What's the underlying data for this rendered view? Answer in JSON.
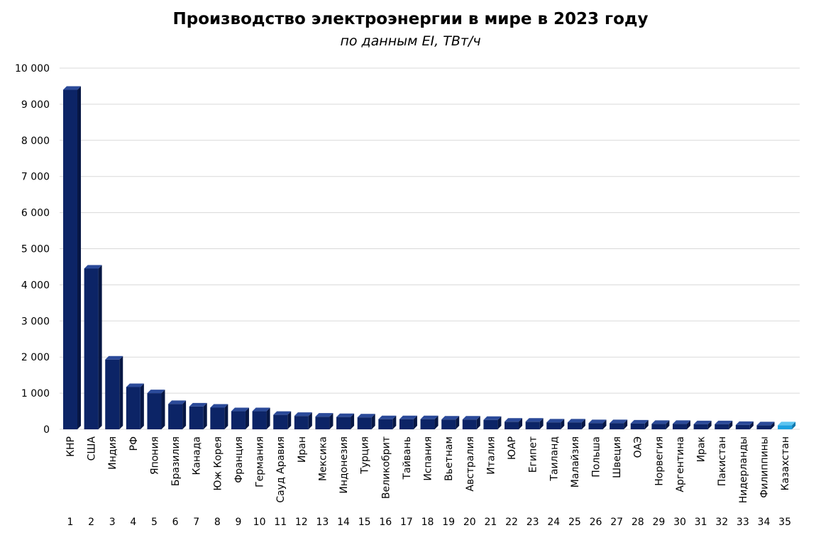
{
  "chart_data": {
    "type": "bar",
    "title": "Производство электроэнергии в мире в 2023 году",
    "subtitle": "по данным EI, ТВт/ч",
    "ylim": [
      0,
      10000
    ],
    "yticks": [
      "0",
      "1 000",
      "2 000",
      "3 000",
      "4 000",
      "5 000",
      "6 000",
      "7 000",
      "8 000",
      "9 000",
      "10 000"
    ],
    "grid": true,
    "colors": {
      "bar": "#0c2466",
      "highlight": "#1da1e0"
    },
    "categories": [
      "КНР",
      "США",
      "Индия",
      "РФ",
      "Япония",
      "Бразилия",
      "Канада",
      "Юж Корея",
      "Франция",
      "Германия",
      "Сауд Аравия",
      "Иран",
      "Мексика",
      "Индонезия",
      "Турция",
      "Великобрит",
      "Тайвань",
      "Испания",
      "Вьетнам",
      "Австралия",
      "Италия",
      "ЮАР",
      "Египет",
      "Таиланд",
      "Малайзия",
      "Польша",
      "Швеция",
      "ОАЭ",
      "Норвегия",
      "Аргентина",
      "Ирак",
      "Пакистан",
      "Нидерланды",
      "Филиппины",
      "Казахстан"
    ],
    "ranks": [
      "1",
      "2",
      "3",
      "4",
      "5",
      "6",
      "7",
      "8",
      "9",
      "10",
      "11",
      "12",
      "13",
      "14",
      "15",
      "16",
      "17",
      "18",
      "19",
      "20",
      "21",
      "22",
      "23",
      "24",
      "25",
      "26",
      "27",
      "28",
      "29",
      "30",
      "31",
      "32",
      "33",
      "34",
      "35"
    ],
    "values": [
      9400,
      4450,
      1930,
      1170,
      1000,
      700,
      630,
      600,
      500,
      500,
      400,
      370,
      350,
      340,
      330,
      280,
      280,
      280,
      270,
      270,
      260,
      210,
      210,
      190,
      190,
      170,
      170,
      160,
      150,
      150,
      140,
      140,
      120,
      110,
      110
    ],
    "highlight_index": 34
  }
}
